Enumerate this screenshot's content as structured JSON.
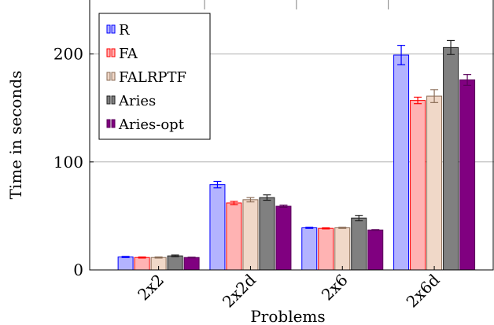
{
  "chart_data": {
    "type": "bar",
    "title": "",
    "xlabel": "Problems",
    "ylabel": "Time in seconds",
    "categories": [
      "2x2",
      "2x2d",
      "2x6",
      "2x6d"
    ],
    "ylim": [
      0,
      250
    ],
    "yticks": [
      0,
      100,
      200
    ],
    "grid": "horizontal",
    "legend_position": "top-left",
    "series": [
      {
        "name": "R",
        "fill": "#b3b3ff",
        "stroke": "#0000ff",
        "values": [
          12,
          79,
          39,
          199
        ],
        "errors": [
          0.5,
          3,
          0.5,
          9
        ]
      },
      {
        "name": "FA",
        "fill": "#ffb3b3",
        "stroke": "#ff0000",
        "values": [
          11.5,
          62,
          38.5,
          157
        ],
        "errors": [
          0.5,
          1.5,
          0.5,
          3
        ]
      },
      {
        "name": "FALRPTF",
        "fill": "#f0d8c8",
        "stroke": "#8b6d57",
        "values": [
          11.5,
          65,
          39,
          161
        ],
        "errors": [
          0.5,
          2,
          0.5,
          6
        ]
      },
      {
        "name": "Aries",
        "fill": "#808080",
        "stroke": "#222222",
        "values": [
          13,
          67,
          48,
          206
        ],
        "errors": [
          0.8,
          2.5,
          2.5,
          6.5
        ]
      },
      {
        "name": "Aries-opt",
        "fill": "#800080",
        "stroke": "#5a005a",
        "values": [
          11.5,
          59,
          37,
          176
        ],
        "errors": [
          0.3,
          1,
          0.3,
          5
        ]
      }
    ]
  }
}
